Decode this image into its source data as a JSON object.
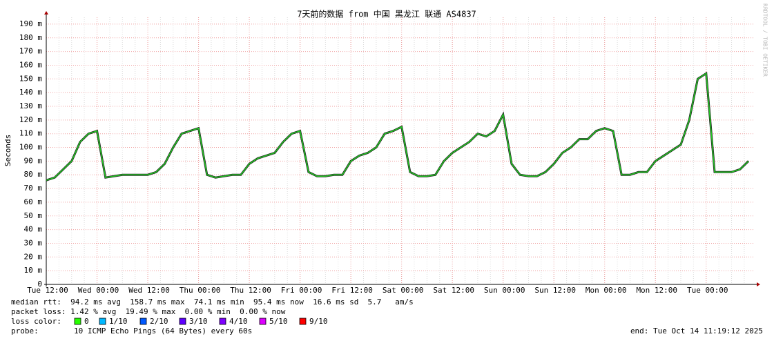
{
  "chart_data": {
    "type": "line",
    "title": "7天前的数据 from 中国 黑龙江 联通 AS4837",
    "y_label": "Seconds",
    "watermark": "RRDTOOL / TOBI OETIKER",
    "x": [
      0,
      2,
      4,
      6,
      8,
      10,
      12,
      14,
      16,
      18,
      20,
      22,
      24,
      26,
      28,
      30,
      32,
      34,
      36,
      38,
      40,
      42,
      44,
      46,
      48,
      50,
      52,
      54,
      56,
      58,
      60,
      62,
      64,
      66,
      68,
      70,
      72,
      74,
      76,
      78,
      80,
      82,
      84,
      86,
      88,
      90,
      92,
      94,
      96,
      98,
      100,
      102,
      104,
      106,
      108,
      110,
      112,
      114,
      116,
      118,
      120,
      122,
      124,
      126,
      128,
      130,
      132,
      134,
      136,
      138,
      140,
      142,
      144,
      146,
      148,
      150,
      152,
      154,
      156,
      158,
      160,
      162,
      164,
      166
    ],
    "series": [
      {
        "name": "median rtt",
        "color": "#22cc22",
        "values": [
          76,
          78,
          84,
          90,
          104,
          110,
          112,
          78,
          79,
          80,
          80,
          80,
          80,
          82,
          88,
          100,
          110,
          112,
          114,
          80,
          78,
          79,
          80,
          80,
          88,
          92,
          94,
          96,
          104,
          110,
          112,
          82,
          79,
          79,
          80,
          80,
          90,
          94,
          96,
          100,
          110,
          112,
          115,
          82,
          79,
          79,
          80,
          90,
          96,
          100,
          104,
          110,
          108,
          112,
          124,
          88,
          80,
          79,
          79,
          82,
          88,
          96,
          100,
          106,
          106,
          112,
          114,
          112,
          80,
          80,
          82,
          82,
          90,
          94,
          98,
          102,
          120,
          150,
          154,
          82,
          82,
          82,
          84,
          90
        ]
      }
    ],
    "xlim": [
      0,
      167.3
    ],
    "xticks": [
      {
        "value": 0,
        "label": "Tue 12:00"
      },
      {
        "value": 12,
        "label": "Wed 00:00"
      },
      {
        "value": 24,
        "label": "Wed 12:00"
      },
      {
        "value": 36,
        "label": "Thu 00:00"
      },
      {
        "value": 48,
        "label": "Thu 12:00"
      },
      {
        "value": 60,
        "label": "Fri 00:00"
      },
      {
        "value": 72,
        "label": "Fri 12:00"
      },
      {
        "value": 84,
        "label": "Sat 00:00"
      },
      {
        "value": 96,
        "label": "Sat 12:00"
      },
      {
        "value": 108,
        "label": "Sun 00:00"
      },
      {
        "value": 120,
        "label": "Sun 12:00"
      },
      {
        "value": 132,
        "label": "Mon 00:00"
      },
      {
        "value": 144,
        "label": "Mon 12:00"
      },
      {
        "value": 156,
        "label": "Tue 00:00"
      }
    ],
    "ylim": [
      0,
      195
    ],
    "yticks": [
      0,
      {
        "value": 10,
        "label": "10 m"
      },
      {
        "value": 20,
        "label": "20 m"
      },
      {
        "value": 30,
        "label": "30 m"
      },
      {
        "value": 40,
        "label": "40 m"
      },
      {
        "value": 50,
        "label": "50 m"
      },
      {
        "value": 60,
        "label": "60 m"
      },
      {
        "value": 70,
        "label": "70 m"
      },
      {
        "value": 80,
        "label": "80 m"
      },
      {
        "value": 90,
        "label": "90 m"
      },
      {
        "value": 100,
        "label": "100 m"
      },
      {
        "value": 110,
        "label": "110 m"
      },
      {
        "value": 120,
        "label": "120 m"
      },
      {
        "value": 130,
        "label": "130 m"
      },
      {
        "value": 140,
        "label": "140 m"
      },
      {
        "value": 150,
        "label": "150 m"
      },
      {
        "value": 160,
        "label": "160 m"
      },
      {
        "value": 170,
        "label": "170 m"
      },
      {
        "value": 180,
        "label": "180 m"
      },
      {
        "value": 190,
        "label": "190 m"
      }
    ],
    "grid": true,
    "stats": "median rtt:  94.2 ms avg  158.7 ms max  74.1 ms min  95.4 ms now  16.6 ms sd  5.7   am/s",
    "packet_loss": "packet loss: 1.42 % avg  19.49 % max  0.00 % min  0.00 % now",
    "loss_color_label": "loss color:",
    "loss_colors": [
      {
        "name": "0",
        "color": "#26ff00"
      },
      {
        "name": "1/10",
        "color": "#00b8ff"
      },
      {
        "name": "2/10",
        "color": "#0059ff"
      },
      {
        "name": "3/10",
        "color": "#5e00ff"
      },
      {
        "name": "4/10",
        "color": "#7e00ff"
      },
      {
        "name": "5/10",
        "color": "#dd00ff"
      },
      {
        "name": "9/10",
        "color": "#ff0000"
      }
    ],
    "probe_label": "probe:",
    "probe": "10 ICMP Echo Pings (64 Bytes) every 60s",
    "end": "end: Tue Oct 14 11:19:12 2025"
  }
}
